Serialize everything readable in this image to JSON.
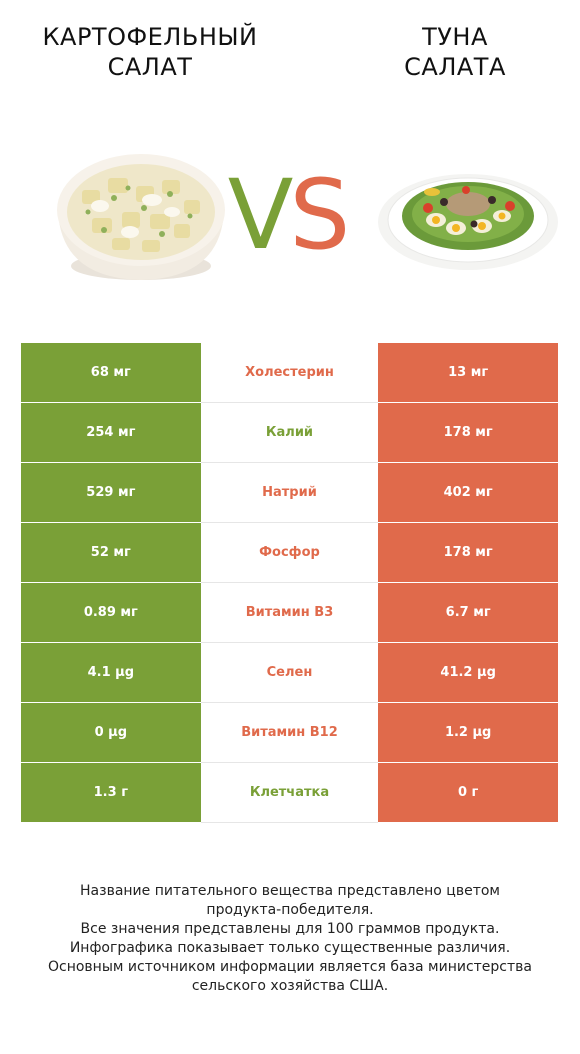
{
  "header": {
    "left_title": "КАРТОФЕЛЬНЫЙ\nСАЛАТ",
    "right_title": "ТУНА\nСАЛАТА",
    "vs_v": "V",
    "vs_s": "S"
  },
  "colors": {
    "left": "#7aa037",
    "right": "#e06a4b"
  },
  "rows": [
    {
      "nutrient": "Холестерин",
      "left": "68 мг",
      "right": "13 мг",
      "winner": "right"
    },
    {
      "nutrient": "Калий",
      "left": "254 мг",
      "right": "178 мг",
      "winner": "left"
    },
    {
      "nutrient": "Натрий",
      "left": "529 мг",
      "right": "402 мг",
      "winner": "right"
    },
    {
      "nutrient": "Фосфор",
      "left": "52 мг",
      "right": "178 мг",
      "winner": "right"
    },
    {
      "nutrient": "Витамин B3",
      "left": "0.89 мг",
      "right": "6.7 мг",
      "winner": "right"
    },
    {
      "nutrient": "Селен",
      "left": "4.1 µg",
      "right": "41.2 µg",
      "winner": "right"
    },
    {
      "nutrient": "Витамин B12",
      "left": "0 µg",
      "right": "1.2 µg",
      "winner": "right"
    },
    {
      "nutrient": "Клетчатка",
      "left": "1.3 г",
      "right": "0 г",
      "winner": "left"
    }
  ],
  "footnote": [
    "Название питательного вещества представлено цветом",
    "продукта-победителя.",
    "Все значения представлены для 100 граммов продукта.",
    "Инфографика показывает только существенные различия.",
    "Основным источником информации является база министерства",
    "сельского хозяйства США."
  ]
}
